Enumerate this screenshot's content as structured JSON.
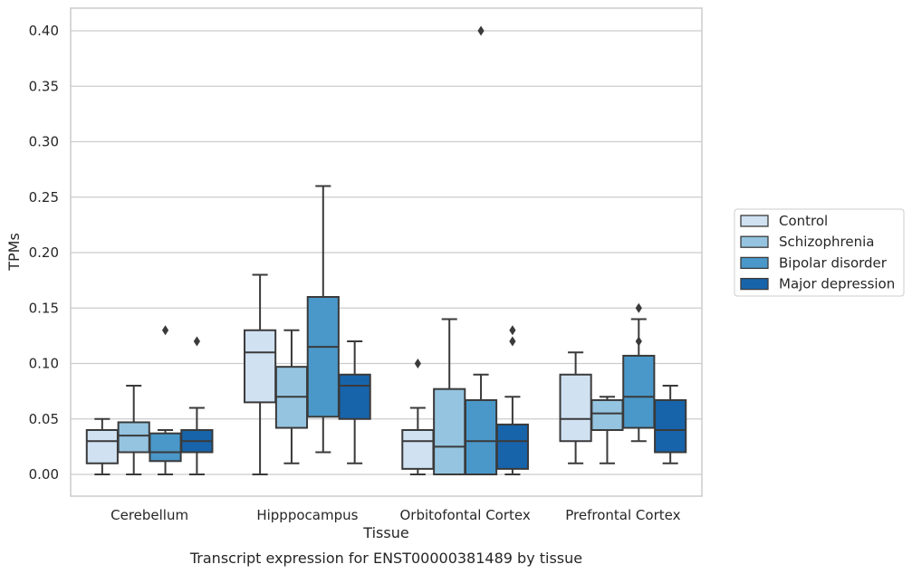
{
  "chart_data": {
    "type": "box",
    "title": "",
    "caption": "Transcript expression for ENST00000381489 by tissue",
    "xlabel": "Tissue",
    "ylabel": "TPMs",
    "ylim": [
      -0.02,
      0.42
    ],
    "yticks": [
      0.0,
      0.05,
      0.1,
      0.15,
      0.2,
      0.25,
      0.3,
      0.35,
      0.4
    ],
    "ytick_labels": [
      "0.00",
      "0.05",
      "0.10",
      "0.15",
      "0.20",
      "0.25",
      "0.30",
      "0.35",
      "0.40"
    ],
    "grid": "horizontal",
    "legend_position": "right",
    "categories": [
      "Cerebellum",
      "Hipppocampus",
      "Orbitofontal Cortex",
      "Prefrontal Cortex"
    ],
    "series": [
      {
        "name": "Control",
        "color": "#d0e1f2",
        "boxes": [
          {
            "q1": 0.01,
            "median": 0.03,
            "q3": 0.04,
            "whisker_low": 0.0,
            "whisker_high": 0.05,
            "outliers": []
          },
          {
            "q1": 0.065,
            "median": 0.11,
            "q3": 0.13,
            "whisker_low": 0.0,
            "whisker_high": 0.18,
            "outliers": []
          },
          {
            "q1": 0.005,
            "median": 0.03,
            "q3": 0.04,
            "whisker_low": 0.0,
            "whisker_high": 0.06,
            "outliers": [
              0.1
            ]
          },
          {
            "q1": 0.03,
            "median": 0.05,
            "q3": 0.09,
            "whisker_low": 0.01,
            "whisker_high": 0.11,
            "outliers": []
          }
        ]
      },
      {
        "name": "Schizophrenia",
        "color": "#94c4df",
        "boxes": [
          {
            "q1": 0.02,
            "median": 0.035,
            "q3": 0.047,
            "whisker_low": 0.0,
            "whisker_high": 0.08,
            "outliers": []
          },
          {
            "q1": 0.042,
            "median": 0.07,
            "q3": 0.097,
            "whisker_low": 0.01,
            "whisker_high": 0.13,
            "outliers": []
          },
          {
            "q1": 0.0,
            "median": 0.025,
            "q3": 0.077,
            "whisker_low": 0.0,
            "whisker_high": 0.14,
            "outliers": []
          },
          {
            "q1": 0.04,
            "median": 0.055,
            "q3": 0.067,
            "whisker_low": 0.01,
            "whisker_high": 0.07,
            "outliers": []
          }
        ]
      },
      {
        "name": "Bipolar disorder",
        "color": "#4a98c9",
        "boxes": [
          {
            "q1": 0.012,
            "median": 0.02,
            "q3": 0.037,
            "whisker_low": 0.0,
            "whisker_high": 0.04,
            "outliers": [
              0.13
            ]
          },
          {
            "q1": 0.052,
            "median": 0.115,
            "q3": 0.16,
            "whisker_low": 0.02,
            "whisker_high": 0.26,
            "outliers": []
          },
          {
            "q1": 0.0,
            "median": 0.03,
            "q3": 0.067,
            "whisker_low": 0.0,
            "whisker_high": 0.09,
            "outliers": [
              0.4
            ]
          },
          {
            "q1": 0.042,
            "median": 0.07,
            "q3": 0.107,
            "whisker_low": 0.03,
            "whisker_high": 0.14,
            "outliers": [
              0.15,
              0.12
            ]
          }
        ]
      },
      {
        "name": "Major depression",
        "color": "#1764ab",
        "boxes": [
          {
            "q1": 0.02,
            "median": 0.03,
            "q3": 0.04,
            "whisker_low": 0.0,
            "whisker_high": 0.06,
            "outliers": [
              0.12
            ]
          },
          {
            "q1": 0.05,
            "median": 0.08,
            "q3": 0.09,
            "whisker_low": 0.01,
            "whisker_high": 0.12,
            "outliers": []
          },
          {
            "q1": 0.005,
            "median": 0.03,
            "q3": 0.045,
            "whisker_low": 0.0,
            "whisker_high": 0.07,
            "outliers": [
              0.13,
              0.12
            ]
          },
          {
            "q1": 0.02,
            "median": 0.04,
            "q3": 0.067,
            "whisker_low": 0.01,
            "whisker_high": 0.08,
            "outliers": []
          }
        ]
      }
    ]
  }
}
